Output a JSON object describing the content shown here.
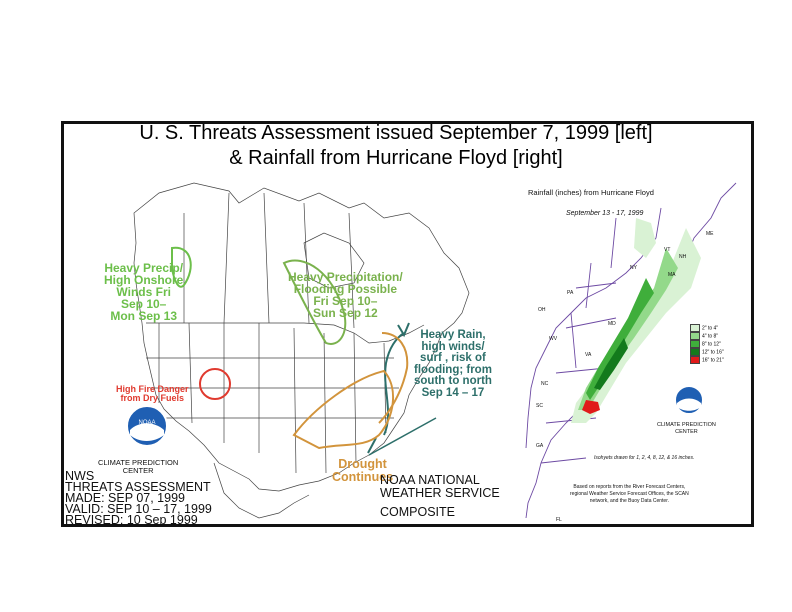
{
  "title": {
    "line1": "U. S. Threats Assessment issued September 7, 1999 [left]",
    "line2": "& Rainfall from Hurricane Floyd [right]"
  },
  "threats_map": {
    "precip_wind_west": "Heavy Precip/\nHigh Onshore\nWinds Fri\nSep 10–\nMon Sep 13",
    "precip_flooding": "Heavy Precipitation/\nFlooding Possible\nFri Sep 10–\nSun Sep 12",
    "heavy_rain_east": "Heavy Rain,\nhigh winds/\nsurf , risk of\nflooding; from\nsouth to north\nSep 14 – 17",
    "fire_danger": "High Fire Danger\nfrom Dry Fuels",
    "drought": "Drought\nContinues",
    "cpc_left": "CLIMATE  PREDICTION\nCENTER",
    "noaa_logo_text": "NOAA",
    "colors": {
      "precip": "#6cbf4a",
      "rain": "#2d6f6a",
      "fire": "#e03a2f",
      "drought": "#d2943c"
    }
  },
  "footer": {
    "nws_block": "NWS\nTHREATS ASSESSMENT\nMADE: SEP 07, 1999\nVALID: SEP 10 – 17, 1999\nREVISED: 10 Sep 1999",
    "noaa_block": "NOAA NATIONAL\nWEATHER SERVICE",
    "composite": "COMPOSITE"
  },
  "rainfall_map": {
    "title": "Rainfall (inches) from Hurricane Floyd",
    "dates": "September 13 - 17, 1999",
    "legend": [
      {
        "label": "2\" to 4\"",
        "color": "#d9f2d4"
      },
      {
        "label": "4\" to 8\"",
        "color": "#93d98a"
      },
      {
        "label": "8\" to 12\"",
        "color": "#3fae3b"
      },
      {
        "label": "12\" to 16\"",
        "color": "#137a1c"
      },
      {
        "label": "16\" to 21\"",
        "color": "#e01a1a"
      }
    ],
    "states": [
      "ME",
      "NH",
      "VT",
      "NY",
      "MA",
      "PA",
      "OH",
      "MD",
      "WV",
      "VA",
      "NC",
      "SC",
      "GA",
      "FL"
    ],
    "cpc_right": "CLIMATE PREDICTION\nCENTER",
    "isohyets_note": "Isohyets drawn for 1, 2, 4, 8, 12, & 16 inches.",
    "source_note": "Based on reports from the River Forecast Centers,\nregional Weather Service Forecast Offices, the SCAN\nnetwork, and the Buoy Data Center."
  }
}
